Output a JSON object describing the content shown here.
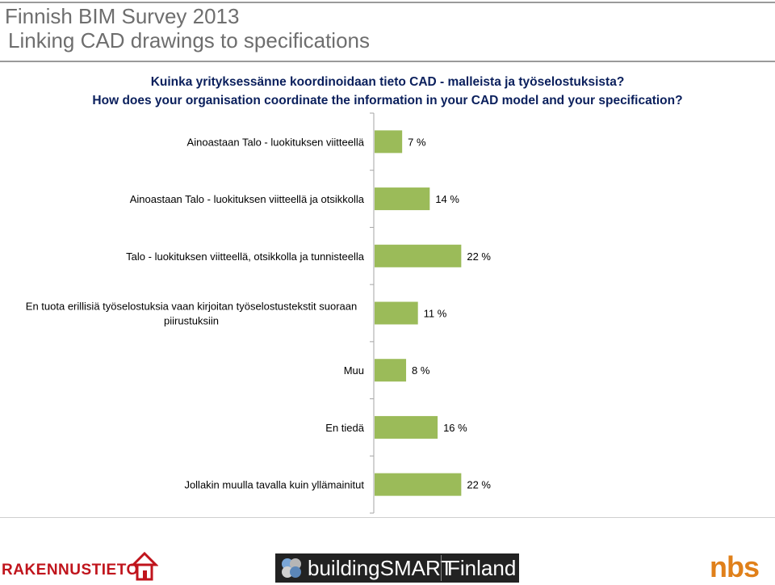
{
  "slide": {
    "title_line1": "Finnish BIM Survey 2013",
    "title_line2": "Linking CAD drawings to specifications"
  },
  "question": {
    "fi": "Kuinka yrityksessänne koordinoidaan tieto CAD - malleista ja työselostuksista?",
    "en": "How does your organisation coordinate the information in your CAD model and your specification?"
  },
  "chart_data": {
    "type": "bar",
    "orientation": "horizontal",
    "categories": [
      "Ainoastaan Talo - luokituksen viitteellä",
      "Ainoastaan Talo - luokituksen viitteellä ja otsikkolla",
      "Talo - luokituksen viitteellä, otsikkolla ja tunnisteella",
      "En tuota erillisiä työselostuksia vaan kirjoitan työselostustekstit suoraan piirustuksiin",
      "Muu",
      "En tiedä",
      "Jollakin muulla tavalla kuin yllämainitut"
    ],
    "category_lines": [
      [
        "Ainoastaan Talo - luokituksen viitteellä"
      ],
      [
        "Ainoastaan Talo - luokituksen viitteellä ja otsikkolla"
      ],
      [
        "Talo - luokituksen viitteellä, otsikkolla ja tunnisteella"
      ],
      [
        "En tuota erillisiä työselostuksia vaan kirjoitan työselostustekstit suoraan",
        "piirustuksiin"
      ],
      [
        "Muu"
      ],
      [
        "En tiedä"
      ],
      [
        "Jollakin muulla tavalla kuin yllämainitut"
      ]
    ],
    "values": [
      7,
      14,
      22,
      11,
      8,
      16,
      22
    ],
    "value_labels": [
      "7 %",
      "14 %",
      "22 %",
      "11 %",
      "8 %",
      "16 %",
      "22 %"
    ],
    "xlim": [
      0,
      100
    ],
    "bar_color": "#9bbb59",
    "grid": false,
    "legend": "none"
  },
  "logos": {
    "left": "RAKENNUSTIETO",
    "center_word1": "buildingSMART",
    "center_word2": "Finland",
    "right": "nbs"
  },
  "colors": {
    "question_text": "#0a1f5c",
    "title_text": "#6e6e6e",
    "rakennustieto_red": "#c0141c",
    "nbs_orange": "#e0801a"
  }
}
